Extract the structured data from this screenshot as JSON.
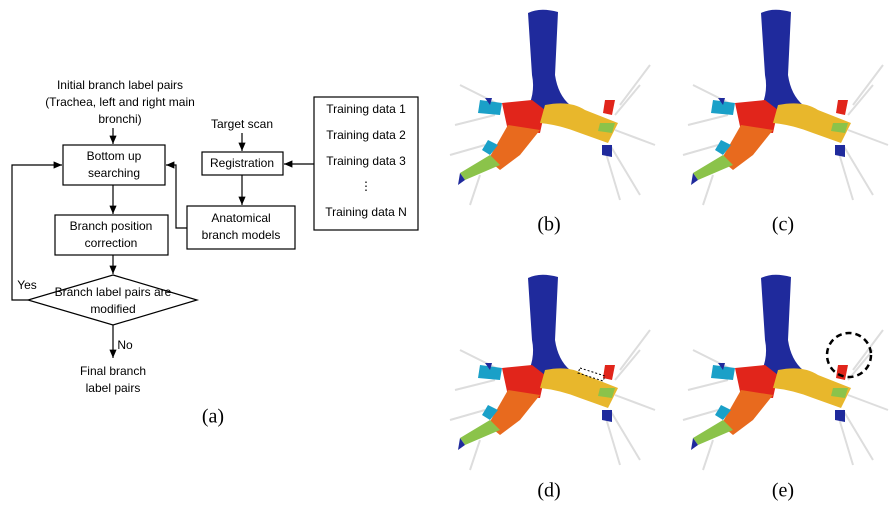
{
  "flowchart": {
    "start": [
      "Initial branch label pairs",
      "(Trachea, left and right main",
      "bronchi)"
    ],
    "bottom_up": [
      "Bottom up",
      "searching"
    ],
    "target_scan": "Target scan",
    "registration": "Registration",
    "training": [
      "Training data 1",
      "Training data 2",
      "Training data 3",
      "⋮",
      "Training data N"
    ],
    "anatomical": [
      "Anatomical",
      "branch models"
    ],
    "correction": [
      "Branch position",
      "correction"
    ],
    "decision": [
      "Branch label pairs are",
      "modified"
    ],
    "yes": "Yes",
    "no": "No",
    "final": [
      "Final branch",
      "label pairs"
    ]
  },
  "captions": [
    "(a)",
    "(b)",
    "(c)",
    "(d)",
    "(e)"
  ]
}
